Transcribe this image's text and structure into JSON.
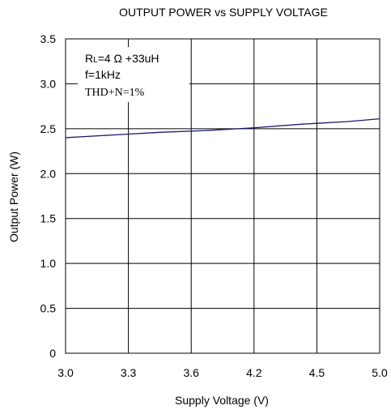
{
  "chart_data": {
    "type": "line",
    "title": "OUTPUT POWER vs SUPPLY VOLTAGE",
    "xlabel": "Supply Voltage (V)",
    "ylabel": "Output Power (W)",
    "xlim": [
      3.0,
      5.0
    ],
    "ylim": [
      0,
      3.5
    ],
    "x_ticks": [
      "3.0",
      "3.3",
      "3.6",
      "4.2",
      "4.5",
      "5.0"
    ],
    "y_ticks": [
      "0",
      "0.5",
      "1.0",
      "1.5",
      "2.0",
      "2.5",
      "3.0",
      "3.5"
    ],
    "grid": true,
    "line_color": "#1a1a6e",
    "annotation": {
      "rl_prefix": "R",
      "rl_sub": "L",
      "rl_rest": "=4 Ω +33uH",
      "freq": "f=1kHz",
      "thd": "THD+N=1%"
    },
    "series": [
      {
        "x": [
          3.0,
          3.3,
          3.6,
          3.9,
          4.2,
          4.5,
          4.8,
          5.0
        ],
        "y": [
          2.4,
          2.43,
          2.46,
          2.48,
          2.51,
          2.55,
          2.58,
          2.61
        ]
      }
    ]
  }
}
